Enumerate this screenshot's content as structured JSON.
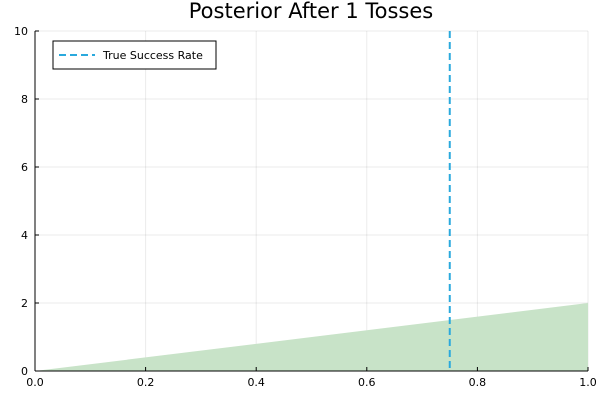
{
  "chart_data": {
    "type": "area",
    "title": "Posterior After 1 Tosses",
    "xlabel": "",
    "ylabel": "",
    "xlim": [
      0,
      1
    ],
    "ylim": [
      0,
      10
    ],
    "x_ticks": [
      0.0,
      0.2,
      0.4,
      0.6,
      0.8,
      1.0
    ],
    "x_tick_labels": [
      "0.0",
      "0.2",
      "0.4",
      "0.6",
      "0.8",
      "1.0"
    ],
    "y_ticks": [
      0,
      2,
      4,
      6,
      8,
      10
    ],
    "y_tick_labels": [
      "0",
      "2",
      "4",
      "6",
      "8",
      "10"
    ],
    "grid": true,
    "legend_position": "top-left",
    "series": [
      {
        "type": "area",
        "x": [
          0.0,
          1.0
        ],
        "y": [
          0.0,
          2.0
        ],
        "color": "#c8e3c8"
      }
    ],
    "reference_lines": [
      {
        "name": "True Success Rate",
        "orientation": "vertical",
        "x": 0.75,
        "style": "dashed",
        "color": "#2aa9dd"
      }
    ]
  }
}
